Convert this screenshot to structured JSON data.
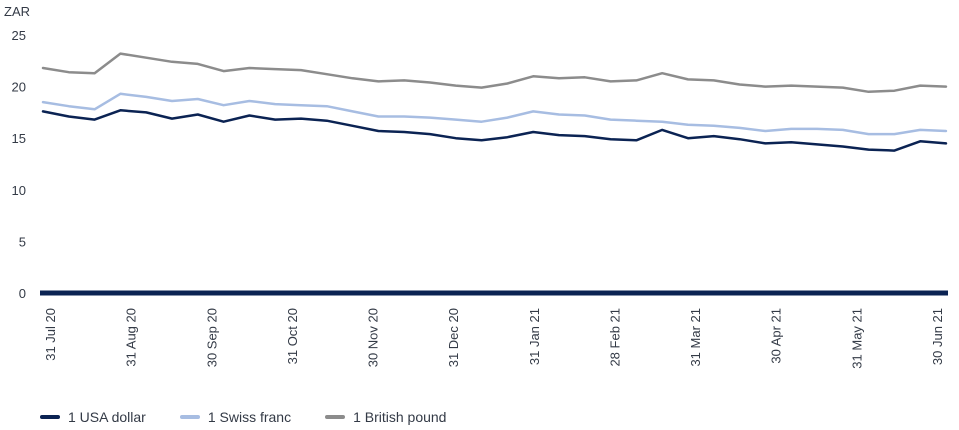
{
  "chart_data": {
    "type": "line",
    "unit_label": "ZAR",
    "ylim": [
      0,
      25
    ],
    "yticks": [
      0,
      5,
      10,
      15,
      20,
      25
    ],
    "x_ticks": [
      "31 Jul 20",
      "31 Aug 20",
      "30 Sep 20",
      "31 Oct 20",
      "30 Nov 20",
      "31 Dec 20",
      "31 Jan 21",
      "28 Feb 21",
      "31 Mar 21",
      "30 Apr 21",
      "31 May 21",
      "30 Jun 21"
    ],
    "grid": false,
    "legend_position": "bottom-left",
    "series": [
      {
        "name": "1 USA dollar",
        "color": "#0b2353",
        "values": [
          17.6,
          17.1,
          16.8,
          17.7,
          17.5,
          16.9,
          17.3,
          16.6,
          17.2,
          16.8,
          16.9,
          16.7,
          16.2,
          15.7,
          15.6,
          15.4,
          15.0,
          14.8,
          15.1,
          15.6,
          15.3,
          15.2,
          14.9,
          14.8,
          15.8,
          15.0,
          15.2,
          14.9,
          14.5,
          14.6,
          14.4,
          14.2,
          13.9,
          13.8,
          14.7,
          14.5
        ]
      },
      {
        "name": "1 Swiss franc",
        "color": "#a7bde2",
        "values": [
          18.5,
          18.1,
          17.8,
          19.3,
          19.0,
          18.6,
          18.8,
          18.2,
          18.6,
          18.3,
          18.2,
          18.1,
          17.6,
          17.1,
          17.1,
          17.0,
          16.8,
          16.6,
          17.0,
          17.6,
          17.3,
          17.2,
          16.8,
          16.7,
          16.6,
          16.3,
          16.2,
          16.0,
          15.7,
          15.9,
          15.9,
          15.8,
          15.4,
          15.4,
          15.8,
          15.7
        ]
      },
      {
        "name": "1 British pound",
        "color": "#8c8c8c",
        "values": [
          21.8,
          21.4,
          21.3,
          23.2,
          22.8,
          22.4,
          22.2,
          21.5,
          21.8,
          21.7,
          21.6,
          21.2,
          20.8,
          20.5,
          20.6,
          20.4,
          20.1,
          19.9,
          20.3,
          21.0,
          20.8,
          20.9,
          20.5,
          20.6,
          21.3,
          20.7,
          20.6,
          20.2,
          20.0,
          20.1,
          20.0,
          19.9,
          19.5,
          19.6,
          20.1,
          20.0
        ]
      }
    ]
  }
}
